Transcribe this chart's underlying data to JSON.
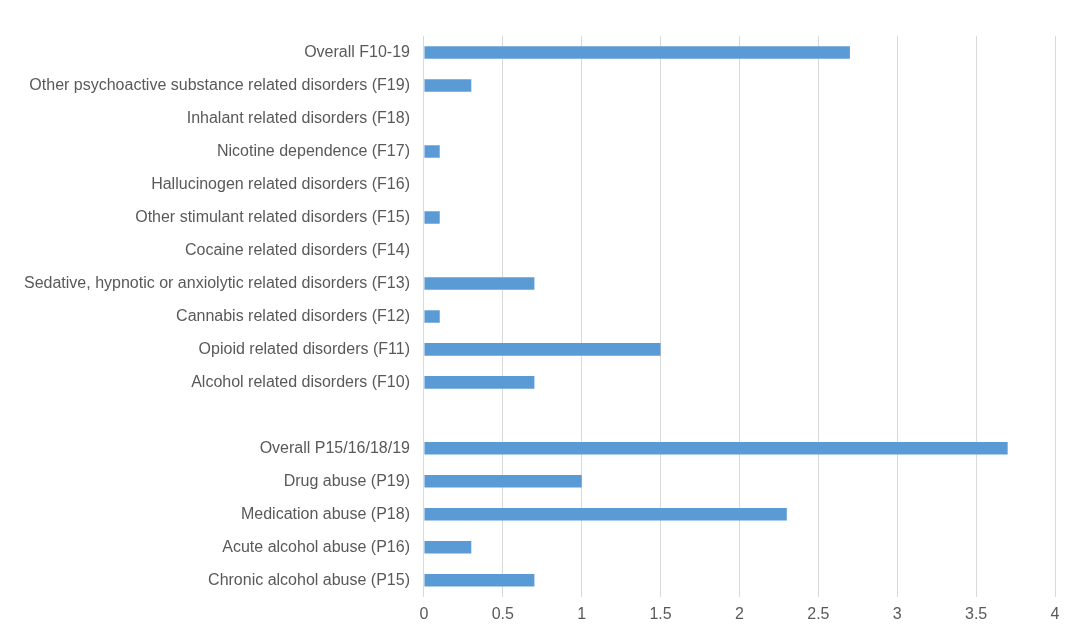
{
  "chart_data": {
    "type": "bar",
    "orientation": "horizontal",
    "categories": [
      "Overall F10-19",
      "Other psychoactive substance related disorders (F19)",
      "Inhalant related disorders (F18)",
      "Nicotine dependence (F17)",
      "Hallucinogen related disorders (F16)",
      "Other stimulant related disorders (F15)",
      "Cocaine related disorders (F14)",
      "Sedative, hypnotic or anxiolytic related disorders (F13)",
      "Cannabis related disorders (F12)",
      "Opioid related disorders (F11)",
      "Alcohol related disorders (F10)",
      null,
      "Overall P15/16/18/19",
      "Drug abuse (P19)",
      "Medication abuse (P18)",
      "Acute alcohol abuse (P16)",
      "Chronic alcohol abuse (P15)"
    ],
    "values": [
      2.7,
      0.3,
      0,
      0.1,
      0,
      0.1,
      0,
      0.7,
      0.1,
      1.5,
      0.7,
      null,
      3.7,
      1.0,
      2.3,
      0.3,
      0.7
    ],
    "color": "#5b9bd5",
    "xlim": [
      0,
      4
    ],
    "xticks": [
      0,
      0.5,
      1,
      1.5,
      2,
      2.5,
      3,
      3.5,
      4
    ],
    "grid": "x"
  }
}
